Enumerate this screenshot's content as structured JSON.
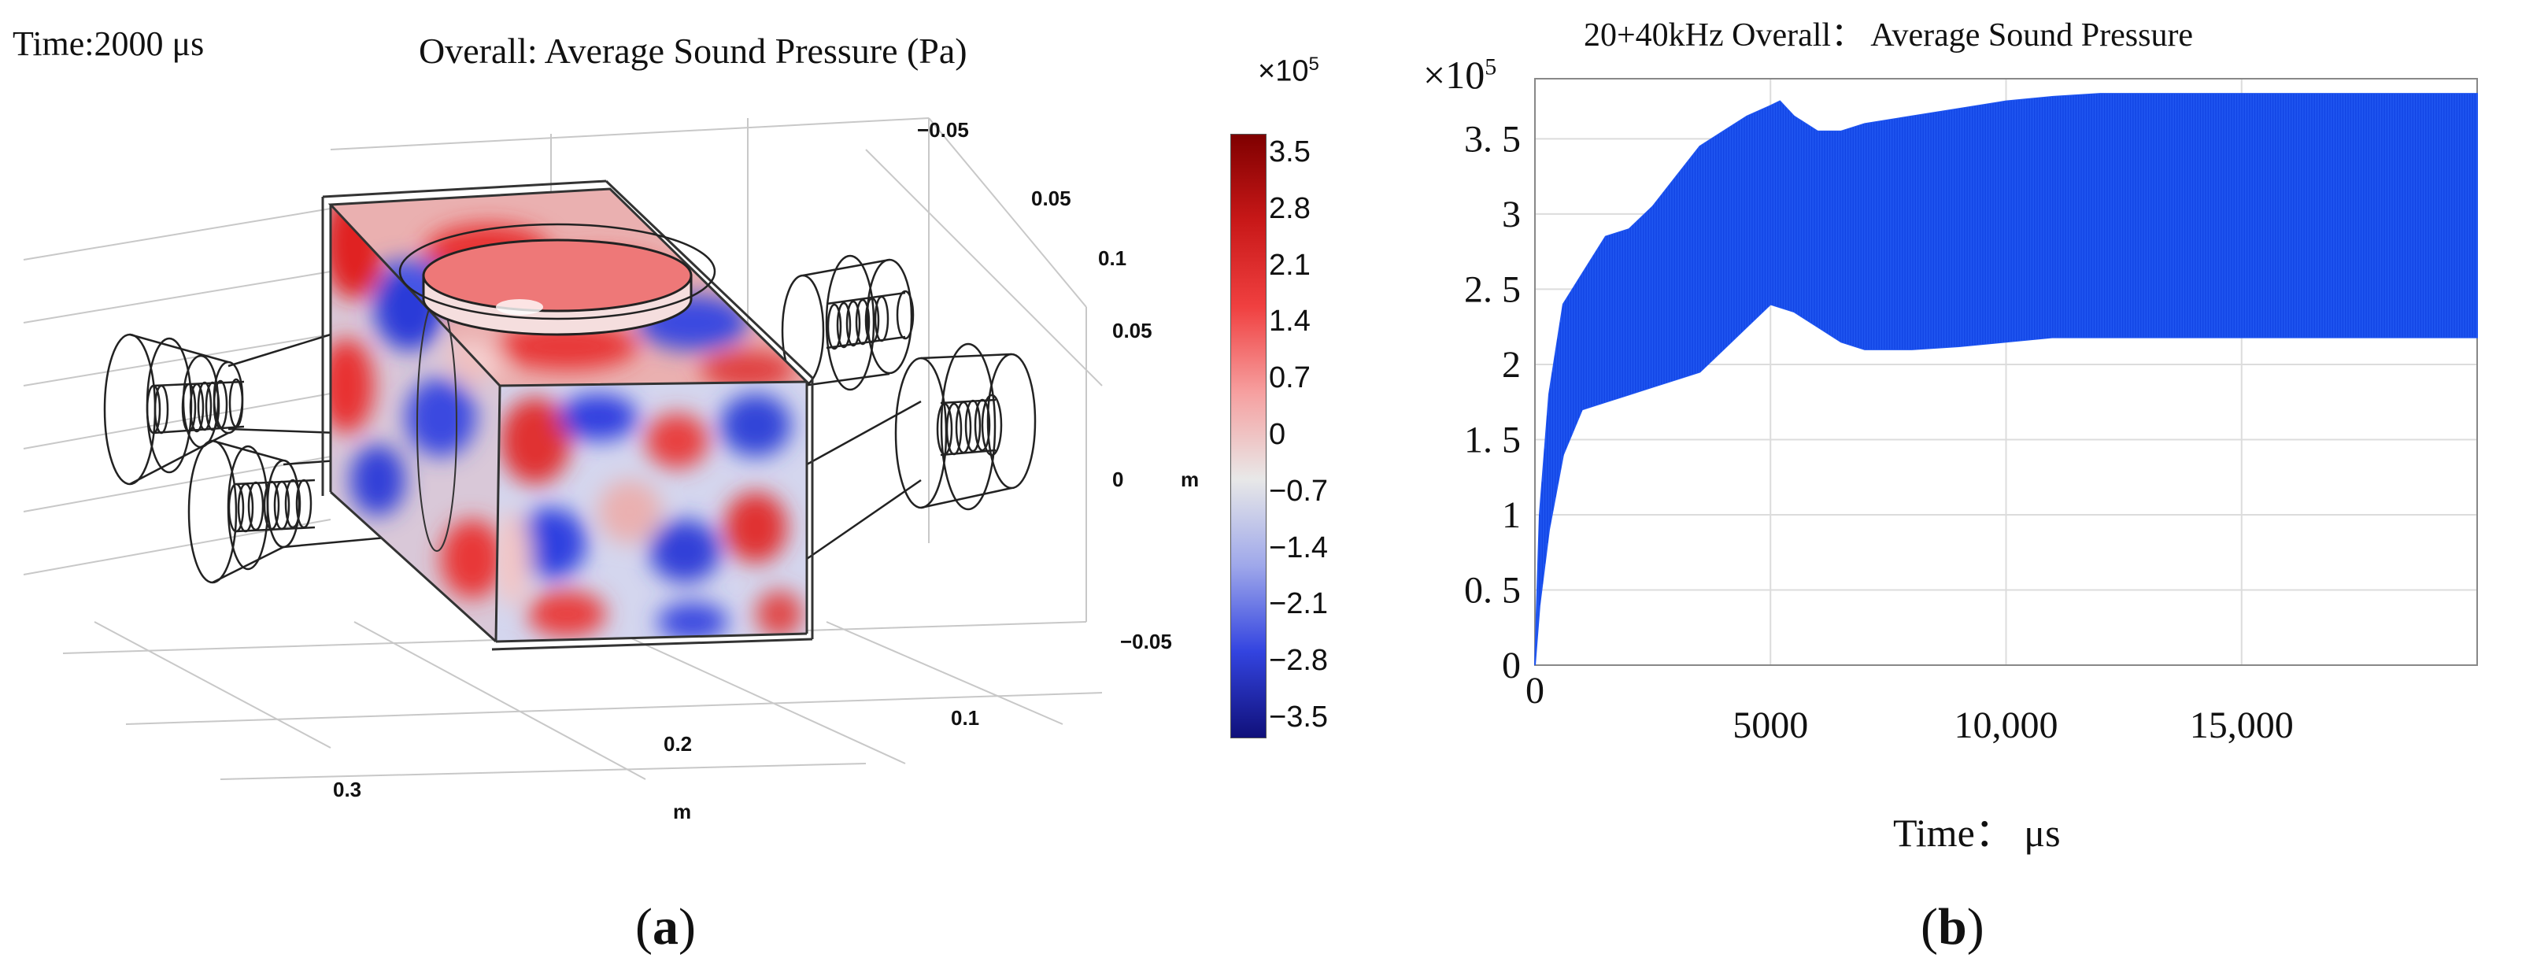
{
  "figure": {
    "panel_a_label": {
      "open": "(",
      "letter": "a",
      "close": ")"
    },
    "panel_b_label": {
      "open": "(",
      "letter": "b",
      "close": ")"
    }
  },
  "panel_a": {
    "time_label": "Time:2000 μs",
    "title": "Overall: Average Sound Pressure (Pa)",
    "axis_labels_right": [
      "−0.05",
      "0.05",
      "0.1",
      "0.05",
      "0",
      "−0.05",
      "0.1"
    ],
    "axis_unit_right": "m",
    "axis_labels_bottom": [
      "0.2",
      "0.3"
    ],
    "axis_unit_bottom": "m",
    "colorbar": {
      "multiplier_base": "×10",
      "multiplier_exp": "5",
      "ticks": [
        "3.5",
        "2.8",
        "2.1",
        "1.4",
        "0.7",
        "0",
        "−0.7",
        "−1.4",
        "−2.1",
        "−2.8",
        "−3.5"
      ],
      "colors": [
        "#7f0000",
        "#c81818",
        "#f04040",
        "#f6a0a0",
        "#e8e8e8",
        "#9fa8ea",
        "#3344e0",
        "#10107a"
      ]
    }
  },
  "chart_data": {
    "type": "line",
    "title": "20+40kHz Overall： Average Sound Pressure",
    "xlabel": "Time： μs",
    "ylabel": "",
    "y_multiplier_base": "×10",
    "y_multiplier_exp": "5",
    "xlim": [
      0,
      20000
    ],
    "ylim": [
      0,
      3.9
    ],
    "x_ticks": [
      0,
      5000,
      10000,
      15000
    ],
    "x_tick_labels": [
      "0",
      "5000",
      "10,000",
      "15,000"
    ],
    "y_ticks": [
      0,
      0.5,
      1,
      1.5,
      2,
      2.5,
      3,
      3.5
    ],
    "y_tick_labels": [
      "0",
      "0. 5",
      "1",
      "1. 5",
      "2",
      "2. 5",
      "3",
      "3. 5"
    ],
    "series": [
      {
        "name": "Average Sound Pressure",
        "color": "#1f55f0",
        "envelope_upper": {
          "x": [
            0,
            100,
            300,
            600,
            1000,
            1500,
            2000,
            2500,
            3000,
            3500,
            4000,
            4500,
            5000,
            5200,
            5500,
            6000,
            6500,
            7000,
            8000,
            9000,
            10000,
            11000,
            12000,
            14000,
            16000,
            18000,
            20000
          ],
          "y": [
            0,
            1.0,
            1.8,
            2.4,
            2.6,
            2.85,
            2.9,
            3.05,
            3.25,
            3.45,
            3.55,
            3.65,
            3.72,
            3.75,
            3.65,
            3.55,
            3.55,
            3.6,
            3.65,
            3.7,
            3.75,
            3.78,
            3.8,
            3.8,
            3.8,
            3.8,
            3.8
          ]
        },
        "envelope_lower": {
          "x": [
            0,
            100,
            300,
            600,
            1000,
            1500,
            2000,
            2500,
            3000,
            3500,
            4000,
            4500,
            5000,
            5500,
            6000,
            6500,
            7000,
            8000,
            9000,
            10000,
            11000,
            12000,
            14000,
            16000,
            18000,
            20000
          ],
          "y": [
            0,
            0.4,
            0.9,
            1.4,
            1.7,
            1.75,
            1.8,
            1.85,
            1.9,
            1.95,
            2.1,
            2.25,
            2.4,
            2.35,
            2.25,
            2.15,
            2.1,
            2.1,
            2.12,
            2.15,
            2.18,
            2.18,
            2.18,
            2.18,
            2.18,
            2.18
          ]
        }
      }
    ]
  }
}
